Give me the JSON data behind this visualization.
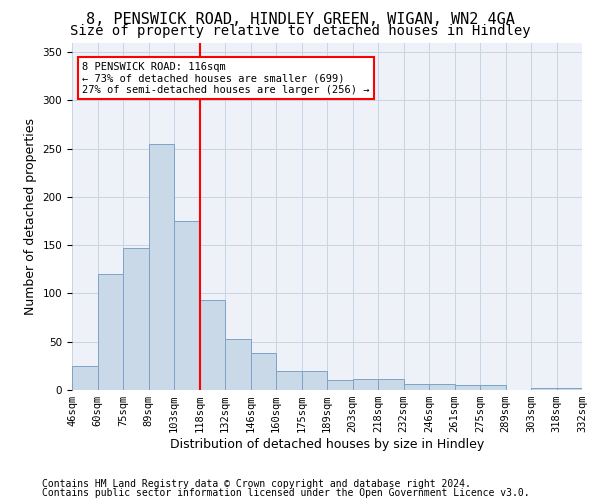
{
  "title1": "8, PENSWICK ROAD, HINDLEY GREEN, WIGAN, WN2 4GA",
  "title2": "Size of property relative to detached houses in Hindley",
  "xlabel": "Distribution of detached houses by size in Hindley",
  "ylabel": "Number of detached properties",
  "bar_values": [
    25,
    120,
    147,
    255,
    175,
    93,
    53,
    38,
    20,
    20,
    10,
    11,
    11,
    6,
    6,
    5,
    5,
    0,
    2,
    2
  ],
  "bar_labels": [
    "46sqm",
    "60sqm",
    "75sqm",
    "89sqm",
    "103sqm",
    "118sqm",
    "132sqm",
    "146sqm",
    "160sqm",
    "175sqm",
    "189sqm",
    "203sqm",
    "218sqm",
    "232sqm",
    "246sqm",
    "261sqm",
    "275sqm",
    "289sqm",
    "303sqm",
    "318sqm",
    "332sqm"
  ],
  "bar_color": "#c9d9e8",
  "bar_edgecolor": "#7ba3c8",
  "property_line_x": 4.5,
  "annotation_line1": "8 PENSWICK ROAD: 116sqm",
  "annotation_line2": "← 73% of detached houses are smaller (699)",
  "annotation_line3": "27% of semi-detached houses are larger (256) →",
  "annotation_box_color": "white",
  "annotation_box_edgecolor": "red",
  "vline_color": "red",
  "ylim": [
    0,
    360
  ],
  "yticks": [
    0,
    50,
    100,
    150,
    200,
    250,
    300,
    350
  ],
  "footer1": "Contains HM Land Registry data © Crown copyright and database right 2024.",
  "footer2": "Contains public sector information licensed under the Open Government Licence v3.0.",
  "title_fontsize": 11,
  "subtitle_fontsize": 10,
  "axis_label_fontsize": 9,
  "tick_fontsize": 7.5,
  "footer_fontsize": 7
}
